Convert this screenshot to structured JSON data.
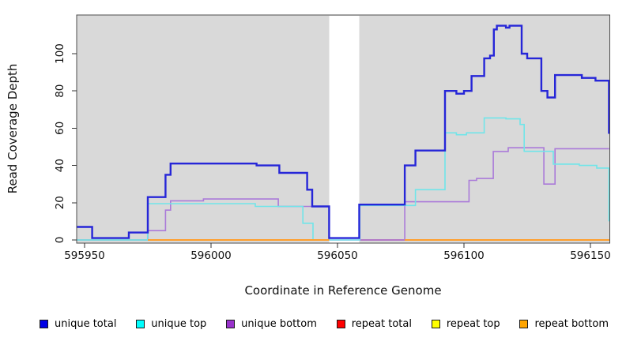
{
  "chart_data": {
    "type": "line",
    "subtype": "step-coverage-plot",
    "title": "",
    "xlabel": "Coordinate in Reference Genome",
    "ylabel": "Read Coverage Depth",
    "x_ticks": [
      595950,
      596000,
      596050,
      596100,
      596150
    ],
    "x_tick_labels": [
      "595950",
      "596000",
      "596050",
      "596100",
      "596150"
    ],
    "y_ticks": [
      0,
      20,
      40,
      60,
      80,
      100
    ],
    "y_tick_labels": [
      "0",
      "20",
      "40",
      "60",
      "80",
      "100"
    ],
    "xlim": [
      595946.9,
      596157.6
    ],
    "ylim": [
      -2.5,
      120.5
    ],
    "grid": false,
    "plot_background": "#d9d9d9",
    "masked_region": {
      "from": 596046.7,
      "to": 596058.6,
      "color": "#ffffff"
    },
    "series": [
      {
        "name": "repeat top",
        "color": "#92d792",
        "width": 1.8,
        "points": [
          [
            595946.9,
            0
          ],
          [
            595975,
            0
          ]
        ]
      },
      {
        "name": "repeat total",
        "color": "#c85073",
        "width": 1.8,
        "points": [
          [
            596058.8,
            0
          ],
          [
            596076.6,
            0
          ]
        ]
      },
      {
        "name": "unique bottom",
        "color": "#aa7ad9",
        "width": 1.6,
        "points": [
          [
            595946.9,
            0
          ],
          [
            595975,
            5
          ],
          [
            595982,
            16
          ],
          [
            595984,
            21
          ],
          [
            595997,
            22
          ],
          [
            596026.6,
            18
          ],
          [
            596046.7,
            0
          ],
          [
            596076.6,
            20.5
          ],
          [
            596102,
            32
          ],
          [
            596105,
            33
          ],
          [
            596111.6,
            47.5
          ],
          [
            596117.5,
            49.5
          ],
          [
            596131.6,
            30
          ],
          [
            596136,
            49
          ],
          [
            596157.4,
            49
          ]
        ]
      },
      {
        "name": "unique top",
        "color": "#70e5e9",
        "width": 1.6,
        "points": [
          [
            595946.9,
            0
          ],
          [
            595974.9,
            19.5
          ],
          [
            596017.5,
            18
          ],
          [
            596036.3,
            9
          ],
          [
            596040.3,
            0
          ],
          [
            596058.8,
            18.5
          ],
          [
            596080.8,
            27
          ],
          [
            596092.5,
            57.5
          ],
          [
            596097,
            56.5
          ],
          [
            596101,
            57.5
          ],
          [
            596108,
            65.5
          ],
          [
            596116.6,
            65
          ],
          [
            596122.2,
            62
          ],
          [
            596123.8,
            47.6
          ],
          [
            596135.3,
            40.7
          ],
          [
            596145.6,
            40
          ],
          [
            596152.5,
            38.6
          ],
          [
            596157.3,
            10
          ]
        ]
      },
      {
        "name": "unique total",
        "color": "#2626d8",
        "width": 2.4,
        "points": [
          [
            595946.9,
            7
          ],
          [
            595953,
            1
          ],
          [
            595967.5,
            4
          ],
          [
            595975,
            23
          ],
          [
            595982,
            35
          ],
          [
            595984,
            41
          ],
          [
            596018,
            40
          ],
          [
            596027,
            36
          ],
          [
            596038,
            27
          ],
          [
            596040,
            18
          ],
          [
            596046.7,
            1
          ],
          [
            596058.6,
            19
          ],
          [
            596076.6,
            40
          ],
          [
            596080.8,
            48
          ],
          [
            596092.5,
            80
          ],
          [
            596097,
            78.5
          ],
          [
            596100,
            80
          ],
          [
            596103,
            88
          ],
          [
            596108,
            97.5
          ],
          [
            596110.3,
            99
          ],
          [
            596111.8,
            113
          ],
          [
            596113,
            115
          ],
          [
            596116.6,
            114
          ],
          [
            596118,
            115
          ],
          [
            596122.8,
            100
          ],
          [
            596125,
            97.5
          ],
          [
            596130.6,
            80
          ],
          [
            596133,
            76.5
          ],
          [
            596136,
            88.5
          ],
          [
            596146.6,
            87
          ],
          [
            596152,
            85.5
          ],
          [
            596157.3,
            57
          ]
        ]
      },
      {
        "name": "repeat bottom",
        "color": "#ff9e2b",
        "width": 2.0,
        "segments": [
          [
            [
              595975,
              0
            ],
            [
              596046.7,
              0
            ]
          ],
          [
            [
              596076.6,
              0
            ],
            [
              596157.5,
              0
            ]
          ]
        ]
      }
    ],
    "legend": [
      {
        "label": "unique total",
        "color": "#0000e6"
      },
      {
        "label": "unique top",
        "color": "#00ffff"
      },
      {
        "label": "unique bottom",
        "color": "#9932cc"
      },
      {
        "label": "repeat total",
        "color": "#ff0000"
      },
      {
        "label": "repeat top",
        "color": "#ffff00"
      },
      {
        "label": "repeat bottom",
        "color": "#ffa500"
      }
    ],
    "legend_position": "bottom"
  }
}
